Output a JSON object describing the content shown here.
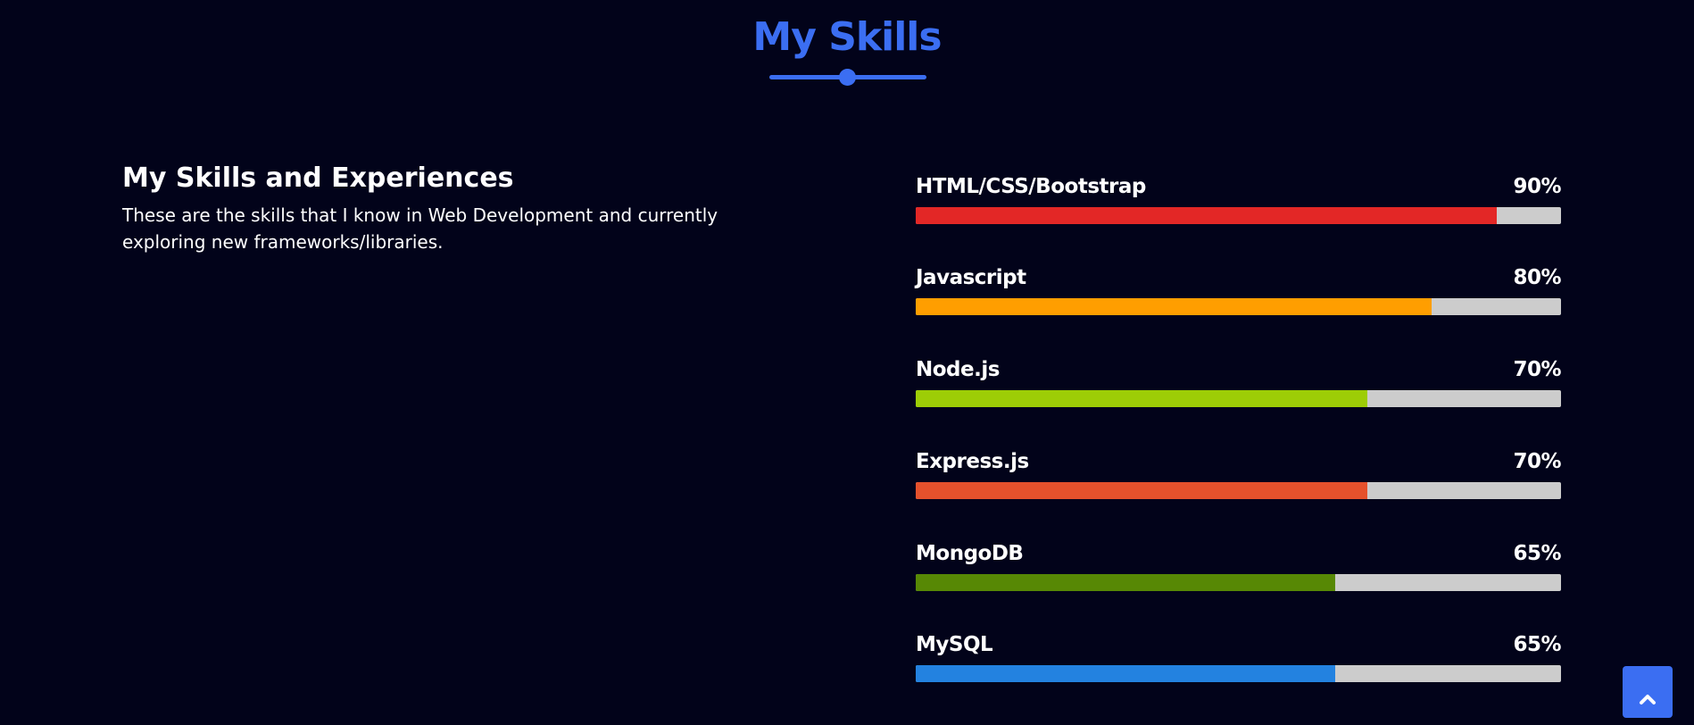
{
  "section": {
    "title": "My Skills",
    "accent_color": "#3b6ef2"
  },
  "intro": {
    "heading": "My Skills and Experiences",
    "text": "These are the skills that I know in Web Development and currently exploring new frameworks/libraries."
  },
  "skills": [
    {
      "name": "HTML/CSS/Bootstrap",
      "percent": "90%",
      "value": 90,
      "color": "#e32726"
    },
    {
      "name": "Javascript",
      "percent": "80%",
      "value": 80,
      "color": "#ff9e00"
    },
    {
      "name": "Node.js",
      "percent": "70%",
      "value": 70,
      "color": "#9dcd06"
    },
    {
      "name": "Express.js",
      "percent": "70%",
      "value": 70,
      "color": "#e5512c"
    },
    {
      "name": "MongoDB",
      "percent": "65%",
      "value": 65,
      "color": "#578805"
    },
    {
      "name": "MySQL",
      "percent": "65%",
      "value": 65,
      "color": "#2382e0"
    }
  ],
  "scroll_top": {
    "icon": "chevron-up-icon"
  }
}
